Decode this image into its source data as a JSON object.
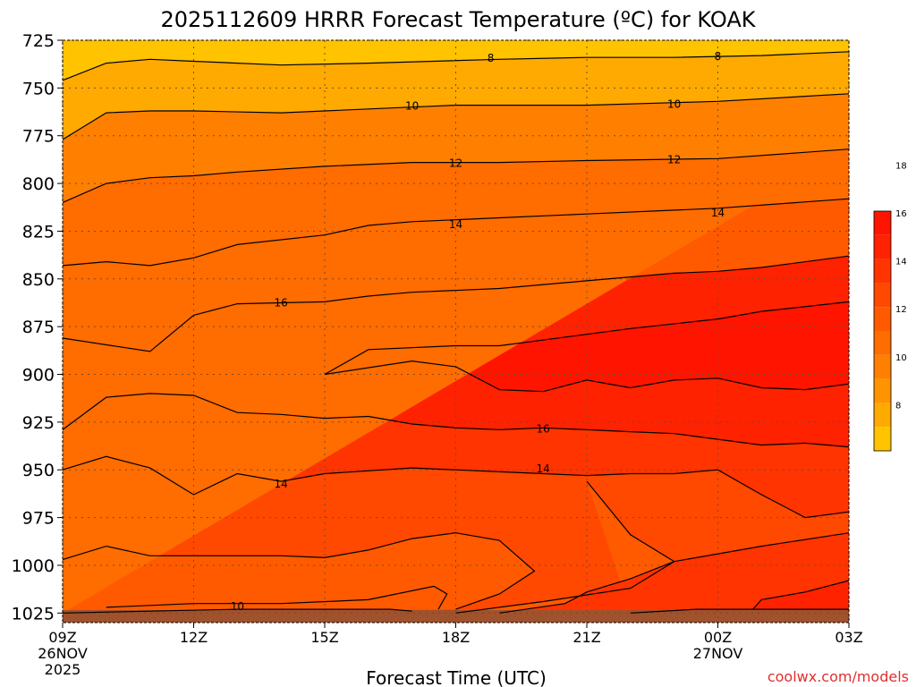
{
  "chart_data": {
    "type": "contour",
    "title": "2025112609 HRRR Forecast Temperature (ºC) for KOAK",
    "xlabel": "Forecast Time (UTC)",
    "ylabel": "",
    "credit": "coolwx.com/models",
    "y_axis": {
      "scale": "pressure (hPa), decreasing upward",
      "ylim": [
        1030,
        725
      ],
      "ticks": [
        725,
        750,
        775,
        800,
        825,
        850,
        875,
        900,
        925,
        950,
        975,
        1000,
        1025
      ]
    },
    "x_axis": {
      "range_hours": [
        0,
        18
      ],
      "ticks": [
        {
          "hour": 0,
          "label": "09Z",
          "sub1": "26NOV",
          "sub2": "2025"
        },
        {
          "hour": 3,
          "label": "12Z",
          "sub1": "",
          "sub2": ""
        },
        {
          "hour": 6,
          "label": "15Z",
          "sub1": "",
          "sub2": ""
        },
        {
          "hour": 9,
          "label": "18Z",
          "sub1": "",
          "sub2": ""
        },
        {
          "hour": 12,
          "label": "21Z",
          "sub1": "",
          "sub2": ""
        },
        {
          "hour": 15,
          "label": "00Z",
          "sub1": "27NOV",
          "sub2": ""
        },
        {
          "hour": 18,
          "label": "03Z",
          "sub1": "",
          "sub2": ""
        }
      ]
    },
    "grid": true,
    "colorbar": {
      "position": "right",
      "labels": [
        "8",
        "10",
        "12",
        "14",
        "16",
        "18"
      ],
      "levels_low_to_high": [
        {
          "range": "<8",
          "color": "#ffc300"
        },
        {
          "range": "8-9",
          "color": "#ffaa00"
        },
        {
          "range": "9-10",
          "color": "#ff9400"
        },
        {
          "range": "10-11",
          "color": "#ff8000"
        },
        {
          "range": "11-12",
          "color": "#ff6c00"
        },
        {
          "range": "12-13",
          "color": "#ff5a00"
        },
        {
          "range": "13-14",
          "color": "#ff4800"
        },
        {
          "range": "14-15",
          "color": "#ff3400"
        },
        {
          "range": "15-16",
          "color": "#ff2200"
        },
        {
          "range": ">16",
          "color": "#ff1400"
        }
      ]
    },
    "surface_color": "#a0522d",
    "contours": [
      {
        "value": "8",
        "label": "8",
        "label_at": [
          [
            9.8,
            734
          ],
          [
            15.0,
            733
          ]
        ],
        "points": [
          [
            0,
            746
          ],
          [
            1,
            737
          ],
          [
            2,
            735
          ],
          [
            3,
            736
          ],
          [
            5,
            738
          ],
          [
            7,
            737
          ],
          [
            10,
            735
          ],
          [
            12,
            734
          ],
          [
            14,
            734
          ],
          [
            16,
            733
          ],
          [
            18,
            731
          ]
        ]
      },
      {
        "value": "10",
        "label": "10",
        "label_at": [
          [
            8.0,
            759
          ],
          [
            14.0,
            758
          ]
        ],
        "points": [
          [
            0,
            777
          ],
          [
            1,
            763
          ],
          [
            2,
            762
          ],
          [
            3,
            762
          ],
          [
            5,
            763
          ],
          [
            6,
            762
          ],
          [
            8,
            760
          ],
          [
            9,
            759
          ],
          [
            12,
            759
          ],
          [
            15,
            757
          ],
          [
            18,
            753
          ]
        ]
      },
      {
        "value": "12",
        "label": "12",
        "label_at": [
          [
            9.0,
            789
          ],
          [
            14.0,
            787
          ]
        ],
        "points": [
          [
            0,
            810
          ],
          [
            1,
            800
          ],
          [
            2,
            797
          ],
          [
            3,
            796
          ],
          [
            4,
            794
          ],
          [
            6,
            791
          ],
          [
            8,
            789
          ],
          [
            10,
            789
          ],
          [
            12,
            788
          ],
          [
            15,
            787
          ],
          [
            18,
            782
          ]
        ]
      },
      {
        "value": "14",
        "label": "14",
        "label_at": [
          [
            9.0,
            821
          ],
          [
            15.0,
            815
          ]
        ],
        "points": [
          [
            0,
            843
          ],
          [
            1,
            841
          ],
          [
            2,
            843
          ],
          [
            3,
            839
          ],
          [
            4,
            832
          ],
          [
            6,
            827
          ],
          [
            7,
            822
          ],
          [
            8,
            820
          ],
          [
            10,
            818
          ],
          [
            12,
            816
          ],
          [
            15,
            813
          ],
          [
            18,
            808
          ]
        ]
      },
      {
        "value": "16",
        "label": "16",
        "label_at": [
          [
            5.0,
            862
          ]
        ],
        "points": [
          [
            0,
            881
          ],
          [
            2,
            888
          ],
          [
            3,
            869
          ],
          [
            4,
            863
          ],
          [
            6,
            862
          ],
          [
            7,
            859
          ],
          [
            8,
            857
          ],
          [
            10,
            855
          ],
          [
            12,
            851
          ],
          [
            14,
            847
          ],
          [
            15,
            846
          ],
          [
            16,
            844
          ],
          [
            18,
            838
          ]
        ]
      },
      {
        "value": "18",
        "label": "",
        "label_at": [],
        "points": [
          [
            18,
            862
          ],
          [
            16,
            867
          ],
          [
            15,
            871
          ],
          [
            13,
            876
          ],
          [
            12,
            879
          ],
          [
            10,
            885
          ],
          [
            9,
            885
          ],
          [
            7,
            887
          ],
          [
            6,
            900
          ],
          [
            8,
            893
          ],
          [
            9,
            896
          ],
          [
            10,
            908
          ],
          [
            11,
            909
          ],
          [
            12,
            903
          ],
          [
            13,
            907
          ],
          [
            14,
            903
          ],
          [
            15,
            902
          ],
          [
            16,
            907
          ],
          [
            17,
            908
          ],
          [
            18,
            905
          ]
        ]
      },
      {
        "value": "16",
        "label": "16",
        "label_at": [
          [
            11.0,
            928
          ]
        ],
        "points": [
          [
            0,
            929
          ],
          [
            1,
            912
          ],
          [
            2,
            910
          ],
          [
            3,
            911
          ],
          [
            4,
            920
          ],
          [
            5,
            921
          ],
          [
            6,
            923
          ],
          [
            7,
            922
          ],
          [
            8,
            926
          ],
          [
            9,
            928
          ],
          [
            10,
            929
          ],
          [
            11,
            928
          ],
          [
            12,
            929
          ],
          [
            13,
            930
          ],
          [
            14,
            931
          ],
          [
            15,
            934
          ],
          [
            16,
            937
          ],
          [
            17,
            936
          ],
          [
            18,
            938
          ]
        ]
      },
      {
        "value": "14",
        "label": "14",
        "label_at": [
          [
            5.0,
            957
          ],
          [
            11.0,
            949
          ]
        ],
        "points": [
          [
            0,
            950
          ],
          [
            1,
            943
          ],
          [
            2,
            949
          ],
          [
            3,
            963
          ],
          [
            4,
            952
          ],
          [
            5,
            956
          ],
          [
            6,
            952
          ],
          [
            8,
            949
          ],
          [
            10,
            951
          ],
          [
            12,
            953
          ],
          [
            13,
            952
          ],
          [
            14,
            952
          ],
          [
            15,
            950
          ],
          [
            16,
            963
          ],
          [
            17,
            975
          ],
          [
            18,
            972
          ]
        ]
      },
      {
        "value": "13",
        "label": "",
        "label_at": [],
        "points": [
          [
            0,
            997
          ],
          [
            1,
            990
          ],
          [
            2,
            995
          ],
          [
            3,
            995
          ],
          [
            5,
            995
          ],
          [
            6,
            996
          ],
          [
            7,
            992
          ],
          [
            8,
            986
          ],
          [
            9,
            983
          ],
          [
            10,
            987
          ],
          [
            10.8,
            1003
          ],
          [
            10,
            1015
          ],
          [
            9,
            1023
          ]
        ]
      },
      {
        "value": "12",
        "label": "",
        "label_at": [],
        "points": [
          [
            1,
            1022
          ],
          [
            3,
            1020
          ],
          [
            5,
            1020
          ],
          [
            7,
            1018
          ],
          [
            8.5,
            1011
          ],
          [
            8.8,
            1015
          ],
          [
            8.6,
            1023
          ]
        ]
      },
      {
        "value": "10",
        "label": "10",
        "label_at": [
          [
            4.0,
            1021
          ]
        ],
        "points": [
          [
            0,
            1025
          ],
          [
            2,
            1024
          ],
          [
            4,
            1023
          ],
          [
            6,
            1023
          ],
          [
            7.5,
            1023
          ],
          [
            8,
            1024
          ]
        ]
      },
      {
        "value": "13.5",
        "label": "",
        "label_at": [],
        "points": [
          [
            9,
            1025
          ],
          [
            11,
            1019
          ],
          [
            13,
            1012
          ],
          [
            14,
            998
          ],
          [
            13,
            984
          ],
          [
            12,
            956
          ]
        ]
      },
      {
        "value": "14.5",
        "label": "",
        "label_at": [],
        "points": [
          [
            10,
            1025
          ],
          [
            11.5,
            1020
          ],
          [
            12,
            1014
          ],
          [
            13,
            1007
          ],
          [
            14,
            998
          ],
          [
            16,
            990
          ],
          [
            18,
            983
          ]
        ]
      },
      {
        "value": "15",
        "label": "",
        "label_at": [],
        "points": [
          [
            13,
            1025
          ],
          [
            14.5,
            1023
          ],
          [
            16,
            1023
          ],
          [
            18,
            1023
          ]
        ]
      },
      {
        "value": "15.5",
        "label": "",
        "label_at": [],
        "points": [
          [
            15.8,
            1023
          ],
          [
            16,
            1018
          ],
          [
            17,
            1014
          ],
          [
            18,
            1008
          ]
        ]
      }
    ]
  }
}
